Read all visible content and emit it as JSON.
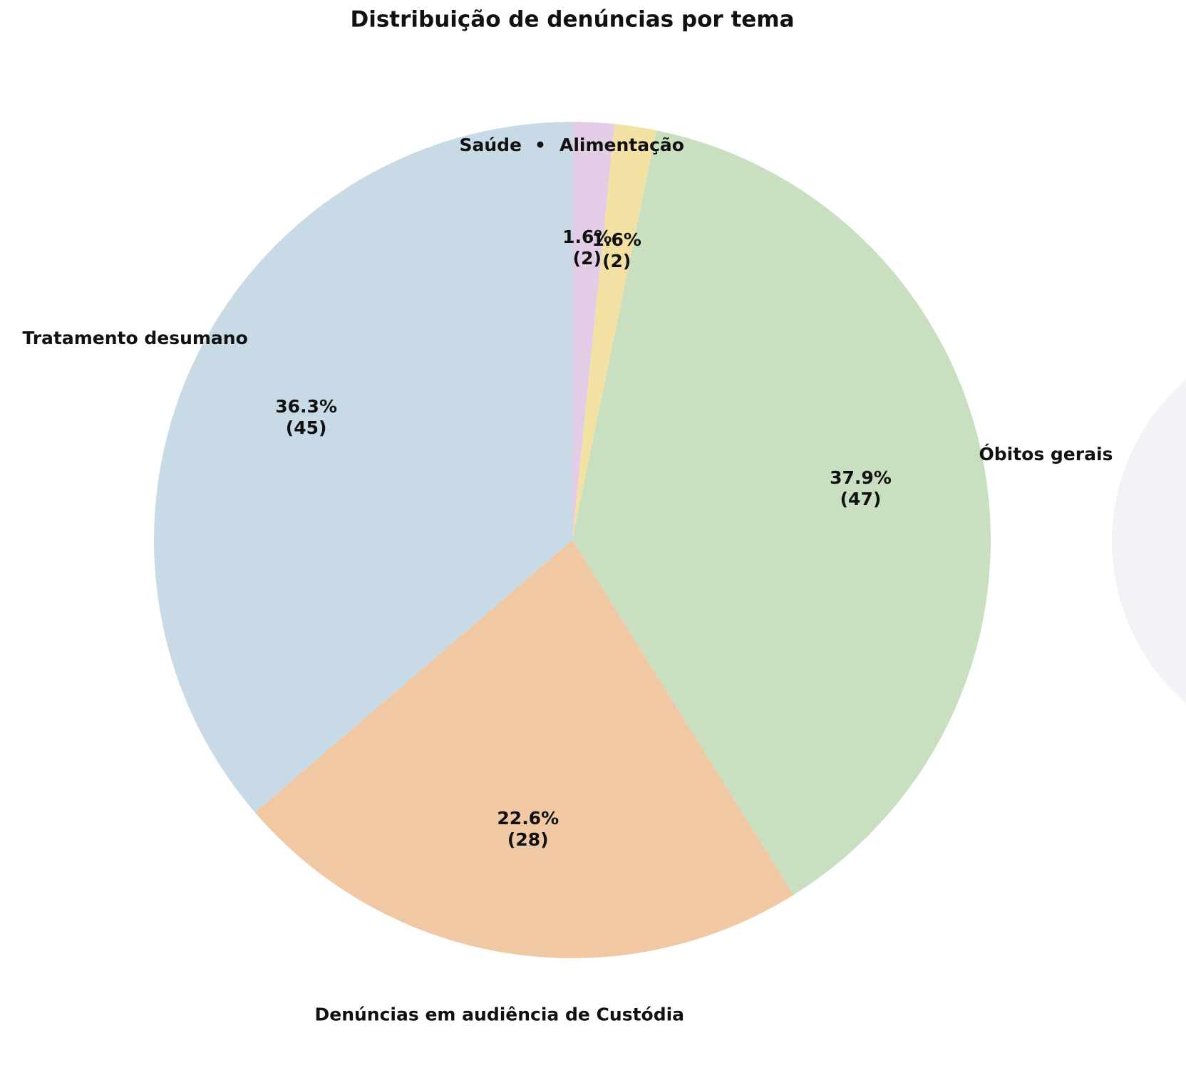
{
  "chart_data": {
    "type": "pie",
    "title": "Distribuição de denúncias por tema",
    "categories": [
      "Saúde",
      "Alimentação",
      "Óbitos gerais",
      "Denúncias em audiência de Custódia",
      "Tratamento desumano"
    ],
    "values": [
      2,
      2,
      47,
      28,
      45
    ],
    "value_labels": [
      "1.6%\n(2)",
      "1.6%\n(2)",
      "37.9%\n(47)",
      "22.6%\n(28)",
      "36.3%\n(45)"
    ],
    "colors": [
      "#e2cce6",
      "#f3e1a4",
      "#c8e0c0",
      "#f0c8a4",
      "#c8dae6"
    ],
    "separator": "•",
    "start_angle": 90,
    "clockwise": true
  }
}
